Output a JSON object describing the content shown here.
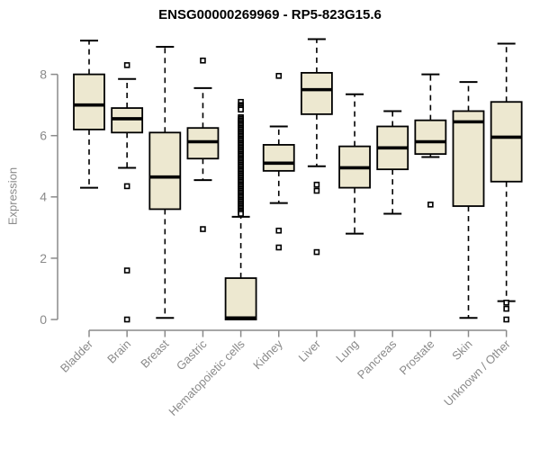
{
  "page": {
    "title": "ENSG00000269969 - RP5-823G15.6"
  },
  "chart_data": {
    "type": "boxplot",
    "title": "ENSG00000269969 - RP5-823G15.6",
    "ylabel": "Expression",
    "xlabel": "",
    "ylim": [
      0,
      9.3
    ],
    "yticks": [
      0,
      2,
      4,
      6,
      8
    ],
    "grid": false,
    "legend": null,
    "colors": {
      "box_fill": "#ede8d0",
      "box_border": "#000000",
      "median": "#000000",
      "whisker": "#000000",
      "axis": "#8a8a8a",
      "tick_label": "#8a8a8a",
      "title": "#000000"
    },
    "categories": [
      "Bladder",
      "Brain",
      "Breast",
      "Gastric",
      "Hematopoietic cells",
      "Kidney",
      "Liver",
      "Lung",
      "Pancreas",
      "Prostate",
      "Skin",
      "Unknown / Other"
    ],
    "series": [
      {
        "category": "Bladder",
        "whisker_low": 4.3,
        "q1": 6.2,
        "median": 7.0,
        "q3": 8.0,
        "whisker_high": 9.1,
        "outliers": []
      },
      {
        "category": "Brain",
        "whisker_low": 4.95,
        "q1": 6.1,
        "median": 6.55,
        "q3": 6.9,
        "whisker_high": 7.85,
        "outliers": [
          8.3,
          4.35,
          1.6,
          0.0
        ]
      },
      {
        "category": "Breast",
        "whisker_low": 0.05,
        "q1": 3.6,
        "median": 4.65,
        "q3": 6.1,
        "whisker_high": 8.9,
        "outliers": []
      },
      {
        "category": "Gastric",
        "whisker_low": 4.55,
        "q1": 5.25,
        "median": 5.8,
        "q3": 6.25,
        "whisker_high": 7.55,
        "outliers": [
          8.45,
          2.95
        ]
      },
      {
        "category": "Hematopoietic cells",
        "whisker_low": 0.0,
        "q1": 0.0,
        "median": 0.05,
        "q3": 1.35,
        "whisker_high": 3.35,
        "outliers": [
          7.1,
          7.0,
          6.95,
          6.9,
          6.85,
          6.6,
          6.55,
          6.5,
          6.45,
          6.4,
          6.35,
          6.3,
          6.25,
          6.2,
          6.15,
          6.1,
          6.05,
          6.0,
          5.95,
          5.9,
          5.85,
          5.8,
          5.75,
          5.7,
          5.65,
          5.6,
          5.55,
          5.5,
          5.45,
          5.4,
          5.35,
          5.3,
          5.25,
          5.2,
          5.15,
          5.1,
          5.05,
          5.0,
          4.95,
          4.9,
          4.85,
          4.8,
          4.75,
          4.7,
          4.65,
          4.6,
          4.55,
          4.5,
          4.45,
          4.4,
          4.35,
          4.3,
          4.25,
          4.2,
          4.15,
          4.1,
          4.05,
          4.0,
          3.95,
          3.9,
          3.85,
          3.8,
          3.75,
          3.7,
          3.65,
          3.6,
          3.55,
          3.5,
          3.45
        ]
      },
      {
        "category": "Kidney",
        "whisker_low": 3.8,
        "q1": 4.85,
        "median": 5.1,
        "q3": 5.7,
        "whisker_high": 6.3,
        "outliers": [
          7.95,
          2.9,
          2.35
        ]
      },
      {
        "category": "Liver",
        "whisker_low": 5.0,
        "q1": 6.7,
        "median": 7.5,
        "q3": 8.05,
        "whisker_high": 9.15,
        "outliers": [
          4.4,
          4.2,
          2.2
        ]
      },
      {
        "category": "Lung",
        "whisker_low": 2.8,
        "q1": 4.3,
        "median": 4.95,
        "q3": 5.65,
        "whisker_high": 7.35,
        "outliers": []
      },
      {
        "category": "Pancreas",
        "whisker_low": 3.45,
        "q1": 4.9,
        "median": 5.6,
        "q3": 6.3,
        "whisker_high": 6.8,
        "outliers": []
      },
      {
        "category": "Prostate",
        "whisker_low": 5.3,
        "q1": 5.4,
        "median": 5.8,
        "q3": 6.5,
        "whisker_high": 8.0,
        "outliers": [
          3.75
        ]
      },
      {
        "category": "Skin",
        "whisker_low": 0.05,
        "q1": 3.7,
        "median": 6.45,
        "q3": 6.8,
        "whisker_high": 7.75,
        "outliers": []
      },
      {
        "category": "Unknown / Other",
        "whisker_low": 0.6,
        "q1": 4.5,
        "median": 5.95,
        "q3": 7.1,
        "whisker_high": 9.0,
        "outliers": [
          0.55,
          0.35,
          0.0
        ]
      }
    ]
  }
}
